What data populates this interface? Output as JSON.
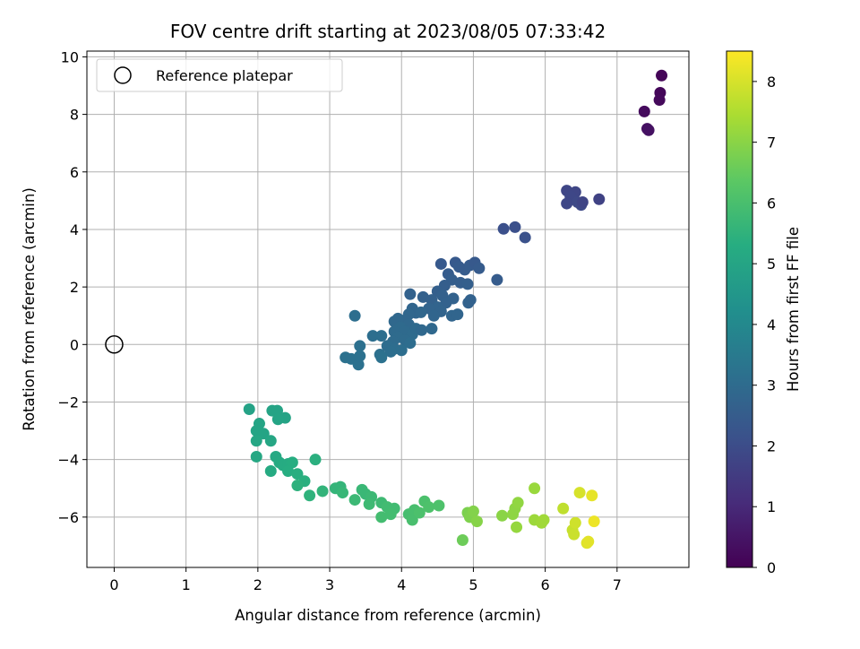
{
  "chart_data": {
    "type": "scatter",
    "title": "FOV centre drift starting at 2023/08/05 07:33:42",
    "xlabel": "Angular distance from reference (arcmin)",
    "ylabel": "Rotation from reference (arcmin)",
    "xlim": [
      -0.38,
      8.0
    ],
    "ylim": [
      -7.75,
      10.2
    ],
    "xticks": [
      0,
      1,
      2,
      3,
      4,
      5,
      6,
      7
    ],
    "yticks": [
      -6,
      -4,
      -2,
      0,
      2,
      4,
      6,
      8,
      10
    ],
    "grid": true,
    "legend": {
      "position": "top-left",
      "entries": [
        "Reference platepar"
      ]
    },
    "reference_point": {
      "x": 0,
      "y": 0,
      "label": "Reference platepar"
    },
    "colorbar": {
      "label": "Hours from first FF file",
      "range": [
        0,
        8.5
      ],
      "ticks": [
        0,
        1,
        2,
        3,
        4,
        5,
        6,
        7,
        8
      ],
      "colormap": "viridis"
    },
    "points": [
      {
        "x": 7.62,
        "y": 9.35,
        "h": 0.1
      },
      {
        "x": 7.6,
        "y": 8.75,
        "h": 0.15
      },
      {
        "x": 7.59,
        "y": 8.5,
        "h": 0.2
      },
      {
        "x": 7.38,
        "y": 8.1,
        "h": 0.25
      },
      {
        "x": 7.42,
        "y": 7.5,
        "h": 0.35
      },
      {
        "x": 7.44,
        "y": 7.45,
        "h": 0.4
      },
      {
        "x": 6.3,
        "y": 5.35,
        "h": 1.8
      },
      {
        "x": 6.42,
        "y": 5.3,
        "h": 1.8
      },
      {
        "x": 6.35,
        "y": 5.15,
        "h": 1.85
      },
      {
        "x": 6.45,
        "y": 4.95,
        "h": 1.9
      },
      {
        "x": 6.3,
        "y": 4.9,
        "h": 1.85
      },
      {
        "x": 6.5,
        "y": 4.85,
        "h": 1.9
      },
      {
        "x": 6.52,
        "y": 4.95,
        "h": 1.75
      },
      {
        "x": 6.75,
        "y": 5.05,
        "h": 1.7
      },
      {
        "x": 5.42,
        "y": 4.02,
        "h": 2.1
      },
      {
        "x": 5.58,
        "y": 4.08,
        "h": 2.1
      },
      {
        "x": 5.72,
        "y": 3.72,
        "h": 2.15
      },
      {
        "x": 5.33,
        "y": 2.25,
        "h": 2.5
      },
      {
        "x": 4.55,
        "y": 2.8,
        "h": 2.4
      },
      {
        "x": 4.75,
        "y": 2.85,
        "h": 2.4
      },
      {
        "x": 4.95,
        "y": 2.75,
        "h": 2.45
      },
      {
        "x": 5.02,
        "y": 2.85,
        "h": 2.4
      },
      {
        "x": 5.08,
        "y": 2.65,
        "h": 2.45
      },
      {
        "x": 4.88,
        "y": 2.6,
        "h": 2.5
      },
      {
        "x": 4.8,
        "y": 2.7,
        "h": 2.45
      },
      {
        "x": 4.65,
        "y": 2.45,
        "h": 2.5
      },
      {
        "x": 4.7,
        "y": 2.25,
        "h": 2.55
      },
      {
        "x": 4.6,
        "y": 2.05,
        "h": 2.55
      },
      {
        "x": 4.82,
        "y": 2.15,
        "h": 2.55
      },
      {
        "x": 4.92,
        "y": 2.1,
        "h": 2.6
      },
      {
        "x": 4.5,
        "y": 1.85,
        "h": 2.6
      },
      {
        "x": 4.3,
        "y": 1.65,
        "h": 2.65
      },
      {
        "x": 4.42,
        "y": 1.55,
        "h": 2.65
      },
      {
        "x": 4.57,
        "y": 1.7,
        "h": 2.65
      },
      {
        "x": 4.62,
        "y": 1.45,
        "h": 2.7
      },
      {
        "x": 4.72,
        "y": 1.6,
        "h": 2.7
      },
      {
        "x": 4.5,
        "y": 1.3,
        "h": 2.75
      },
      {
        "x": 4.38,
        "y": 1.25,
        "h": 2.75
      },
      {
        "x": 4.55,
        "y": 1.15,
        "h": 2.75
      },
      {
        "x": 4.45,
        "y": 1.0,
        "h": 2.8
      },
      {
        "x": 4.7,
        "y": 1.0,
        "h": 2.8
      },
      {
        "x": 4.78,
        "y": 1.05,
        "h": 2.8
      },
      {
        "x": 4.93,
        "y": 1.45,
        "h": 2.7
      },
      {
        "x": 4.96,
        "y": 1.55,
        "h": 2.7
      },
      {
        "x": 4.12,
        "y": 1.75,
        "h": 2.7
      },
      {
        "x": 4.15,
        "y": 1.25,
        "h": 2.8
      },
      {
        "x": 4.2,
        "y": 1.1,
        "h": 2.8
      },
      {
        "x": 4.1,
        "y": 1.05,
        "h": 2.85
      },
      {
        "x": 4.27,
        "y": 1.12,
        "h": 2.85
      },
      {
        "x": 4.05,
        "y": 0.85,
        "h": 2.85
      },
      {
        "x": 3.95,
        "y": 0.9,
        "h": 2.9
      },
      {
        "x": 3.9,
        "y": 0.8,
        "h": 2.9
      },
      {
        "x": 4.1,
        "y": 0.7,
        "h": 2.9
      },
      {
        "x": 3.98,
        "y": 0.6,
        "h": 2.95
      },
      {
        "x": 3.9,
        "y": 0.45,
        "h": 2.95
      },
      {
        "x": 4.05,
        "y": 0.45,
        "h": 2.95
      },
      {
        "x": 4.15,
        "y": 0.35,
        "h": 3.0
      },
      {
        "x": 4.2,
        "y": 0.55,
        "h": 2.95
      },
      {
        "x": 4.28,
        "y": 0.5,
        "h": 2.9
      },
      {
        "x": 4.42,
        "y": 0.55,
        "h": 2.9
      },
      {
        "x": 3.95,
        "y": 0.25,
        "h": 3.0
      },
      {
        "x": 3.88,
        "y": 0.1,
        "h": 3.0
      },
      {
        "x": 4.05,
        "y": 0.15,
        "h": 3.0
      },
      {
        "x": 4.12,
        "y": 0.05,
        "h": 3.05
      },
      {
        "x": 3.8,
        "y": -0.05,
        "h": 3.05
      },
      {
        "x": 3.9,
        "y": -0.15,
        "h": 3.05
      },
      {
        "x": 4.0,
        "y": -0.2,
        "h": 3.1
      },
      {
        "x": 3.6,
        "y": 0.3,
        "h": 3.1
      },
      {
        "x": 3.72,
        "y": 0.3,
        "h": 3.1
      },
      {
        "x": 3.85,
        "y": -0.25,
        "h": 3.1
      },
      {
        "x": 3.42,
        "y": -0.05,
        "h": 3.15
      },
      {
        "x": 3.35,
        "y": 1.0,
        "h": 3.1
      },
      {
        "x": 3.22,
        "y": -0.45,
        "h": 3.2
      },
      {
        "x": 3.3,
        "y": -0.5,
        "h": 3.2
      },
      {
        "x": 3.4,
        "y": -0.7,
        "h": 3.2
      },
      {
        "x": 3.42,
        "y": -0.4,
        "h": 3.2
      },
      {
        "x": 3.7,
        "y": -0.35,
        "h": 3.15
      },
      {
        "x": 3.72,
        "y": -0.45,
        "h": 3.2
      },
      {
        "x": 1.88,
        "y": -2.25,
        "h": 4.9
      },
      {
        "x": 2.2,
        "y": -2.3,
        "h": 4.95
      },
      {
        "x": 2.27,
        "y": -2.3,
        "h": 4.95
      },
      {
        "x": 2.38,
        "y": -2.55,
        "h": 4.95
      },
      {
        "x": 2.28,
        "y": -2.6,
        "h": 5.0
      },
      {
        "x": 2.02,
        "y": -2.75,
        "h": 5.0
      },
      {
        "x": 1.98,
        "y": -3.0,
        "h": 5.0
      },
      {
        "x": 2.08,
        "y": -3.1,
        "h": 5.0
      },
      {
        "x": 1.98,
        "y": -3.35,
        "h": 5.05
      },
      {
        "x": 2.18,
        "y": -3.35,
        "h": 5.05
      },
      {
        "x": 1.98,
        "y": -3.9,
        "h": 5.1
      },
      {
        "x": 2.25,
        "y": -3.9,
        "h": 5.15
      },
      {
        "x": 2.3,
        "y": -4.1,
        "h": 5.2
      },
      {
        "x": 2.35,
        "y": -4.2,
        "h": 5.25
      },
      {
        "x": 2.42,
        "y": -4.15,
        "h": 5.25
      },
      {
        "x": 2.48,
        "y": -4.1,
        "h": 5.3
      },
      {
        "x": 2.42,
        "y": -4.4,
        "h": 5.3
      },
      {
        "x": 2.55,
        "y": -4.5,
        "h": 5.35
      },
      {
        "x": 2.18,
        "y": -4.4,
        "h": 5.2
      },
      {
        "x": 2.8,
        "y": -4.0,
        "h": 5.4
      },
      {
        "x": 2.65,
        "y": -4.75,
        "h": 5.4
      },
      {
        "x": 2.55,
        "y": -4.9,
        "h": 5.45
      },
      {
        "x": 2.72,
        "y": -5.25,
        "h": 5.5
      },
      {
        "x": 2.9,
        "y": -5.1,
        "h": 5.55
      },
      {
        "x": 3.08,
        "y": -5.0,
        "h": 5.6
      },
      {
        "x": 3.15,
        "y": -4.95,
        "h": 5.6
      },
      {
        "x": 3.18,
        "y": -5.15,
        "h": 5.65
      },
      {
        "x": 3.45,
        "y": -5.05,
        "h": 5.7
      },
      {
        "x": 3.5,
        "y": -5.2,
        "h": 5.7
      },
      {
        "x": 3.58,
        "y": -5.3,
        "h": 5.75
      },
      {
        "x": 3.35,
        "y": -5.4,
        "h": 5.75
      },
      {
        "x": 3.55,
        "y": -5.55,
        "h": 5.8
      },
      {
        "x": 3.72,
        "y": -5.5,
        "h": 5.8
      },
      {
        "x": 3.8,
        "y": -5.65,
        "h": 5.85
      },
      {
        "x": 3.9,
        "y": -5.7,
        "h": 5.85
      },
      {
        "x": 3.72,
        "y": -6.0,
        "h": 5.9
      },
      {
        "x": 3.85,
        "y": -5.9,
        "h": 5.9
      },
      {
        "x": 4.1,
        "y": -5.9,
        "h": 5.95
      },
      {
        "x": 4.15,
        "y": -6.1,
        "h": 6.0
      },
      {
        "x": 4.18,
        "y": -5.75,
        "h": 6.0
      },
      {
        "x": 4.25,
        "y": -5.85,
        "h": 6.05
      },
      {
        "x": 4.32,
        "y": -5.45,
        "h": 6.05
      },
      {
        "x": 4.38,
        "y": -5.65,
        "h": 6.1
      },
      {
        "x": 4.52,
        "y": -5.6,
        "h": 6.1
      },
      {
        "x": 4.85,
        "y": -6.8,
        "h": 6.6
      },
      {
        "x": 4.92,
        "y": -5.85,
        "h": 6.8
      },
      {
        "x": 4.95,
        "y": -6.0,
        "h": 6.85
      },
      {
        "x": 5.0,
        "y": -5.8,
        "h": 6.9
      },
      {
        "x": 5.05,
        "y": -6.15,
        "h": 6.95
      },
      {
        "x": 5.4,
        "y": -5.95,
        "h": 7.0
      },
      {
        "x": 5.55,
        "y": -5.9,
        "h": 7.05
      },
      {
        "x": 5.58,
        "y": -5.7,
        "h": 7.05
      },
      {
        "x": 5.62,
        "y": -5.5,
        "h": 7.1
      },
      {
        "x": 5.6,
        "y": -6.35,
        "h": 7.15
      },
      {
        "x": 5.85,
        "y": -5.0,
        "h": 7.2
      },
      {
        "x": 5.85,
        "y": -6.1,
        "h": 7.25
      },
      {
        "x": 5.95,
        "y": -6.2,
        "h": 7.3
      },
      {
        "x": 5.98,
        "y": -6.1,
        "h": 7.3
      },
      {
        "x": 6.25,
        "y": -5.7,
        "h": 7.7
      },
      {
        "x": 6.38,
        "y": -6.45,
        "h": 7.8
      },
      {
        "x": 6.4,
        "y": -6.6,
        "h": 7.85
      },
      {
        "x": 6.42,
        "y": -6.2,
        "h": 7.9
      },
      {
        "x": 6.48,
        "y": -5.15,
        "h": 8.0
      },
      {
        "x": 6.58,
        "y": -6.9,
        "h": 8.1
      },
      {
        "x": 6.6,
        "y": -6.85,
        "h": 8.15
      },
      {
        "x": 6.65,
        "y": -5.25,
        "h": 8.2
      },
      {
        "x": 6.68,
        "y": -6.15,
        "h": 8.3
      }
    ]
  }
}
